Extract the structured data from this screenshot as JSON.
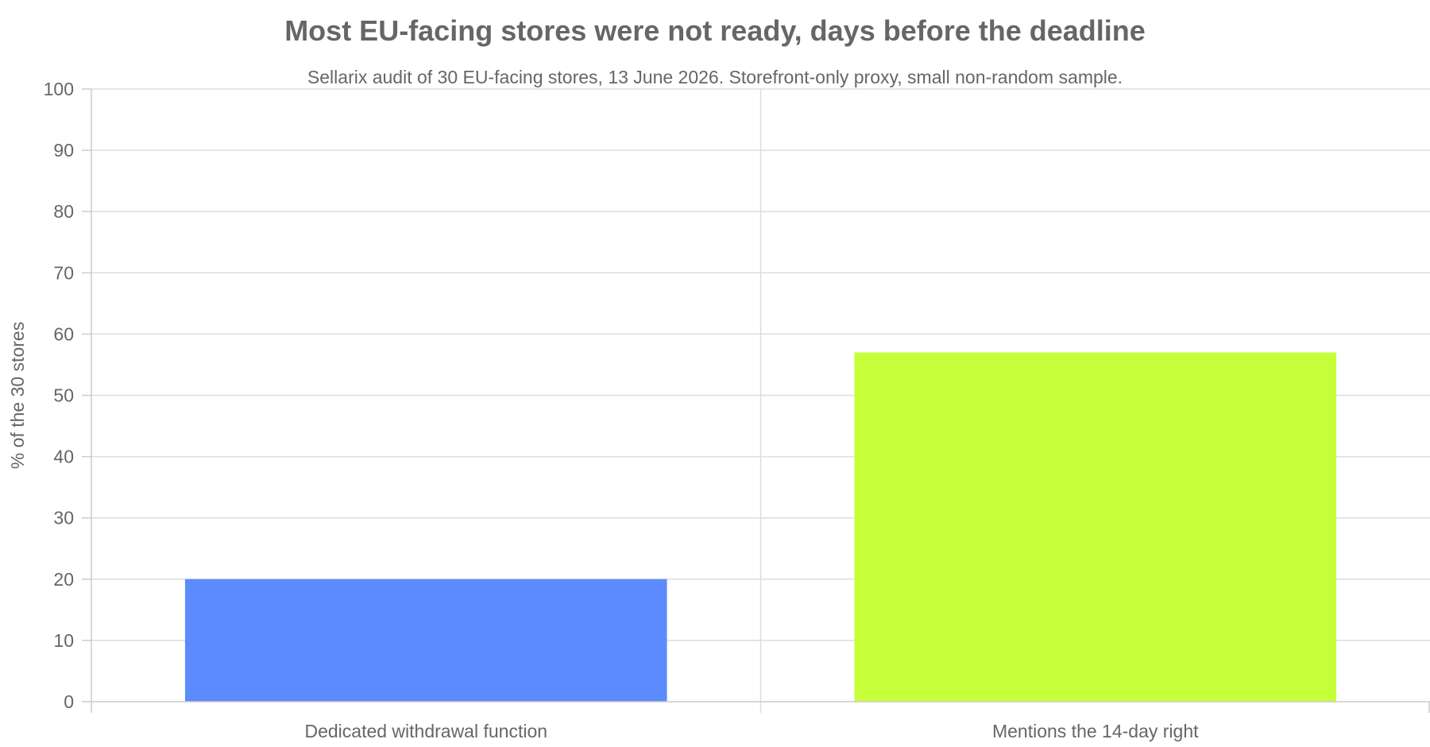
{
  "chart_data": {
    "type": "bar",
    "title": "Most EU-facing stores were not ready, days before the deadline",
    "subtitle": "Sellarix audit of 30 EU-facing stores, 13 June 2026. Storefront-only proxy, small non-random sample.",
    "xlabel": "",
    "ylabel": "% of the 30 stores",
    "categories": [
      "Dedicated withdrawal function",
      "Mentions the 14-day right"
    ],
    "values": [
      20,
      57
    ],
    "colors": [
      "#5b8bff",
      "#c6ff3a"
    ],
    "ylim": [
      0,
      100
    ],
    "yticks": [
      0,
      10,
      20,
      30,
      40,
      50,
      60,
      70,
      80,
      90,
      100
    ],
    "grid": true,
    "legend": "none"
  }
}
